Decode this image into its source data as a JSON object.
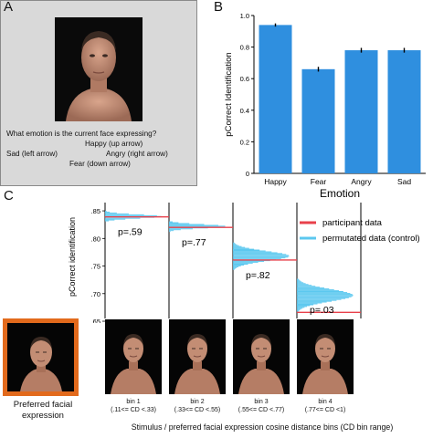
{
  "panel_labels": {
    "a": "A",
    "b": "B",
    "c": "C"
  },
  "panelA": {
    "question": "What emotion is the current face expressing?",
    "happy": "Happy (up arrow)",
    "sad": "Sad (left arrow)",
    "angry": "Angry (right arrow)",
    "fear": "Fear (down arrow)"
  },
  "colors": {
    "bar": "#2f8fdf",
    "hist": "#5cc8ef",
    "participant_line": "#e8414b",
    "preferred_border": "#e26a1c"
  },
  "chart_data": [
    {
      "type": "bar",
      "categories": [
        "Happy",
        "Fear",
        "Angry",
        "Sad"
      ],
      "values": [
        0.94,
        0.66,
        0.78,
        0.78
      ],
      "errors": [
        0.01,
        0.015,
        0.015,
        0.015
      ],
      "xlabel": "Emotion",
      "ylabel": "pCorrect Identification",
      "ylim": [
        0,
        1.0
      ],
      "yticks": [
        "0",
        "0.2",
        "0.4",
        "0.6",
        "0.8",
        "1.0"
      ]
    },
    {
      "type": "histogram",
      "ylabel": "pCorrect identification",
      "ylim": [
        0.655,
        0.865
      ],
      "yticks": [
        ".85",
        ".80",
        ".75",
        ".70",
        ".65"
      ],
      "ytick_values": [
        0.85,
        0.8,
        0.75,
        0.7,
        0.65
      ],
      "bins": [
        {
          "p_label": "p=.59",
          "participant": 0.839,
          "perm_mean": 0.84,
          "perm_sd": 0.0035,
          "label_line1": "bin 1",
          "label_line2": "(.11<= CD <.33)"
        },
        {
          "p_label": "p=.77",
          "participant": 0.82,
          "perm_mean": 0.822,
          "perm_sd": 0.0035,
          "label_line1": "bin 2",
          "label_line2": "(.33<= CD <.55)"
        },
        {
          "p_label": "p=.82",
          "participant": 0.761,
          "perm_mean": 0.768,
          "perm_sd": 0.009,
          "label_line1": "bin 3",
          "label_line2": "(.55<= CD <.77)"
        },
        {
          "p_label": "p=.03",
          "participant": 0.666,
          "perm_mean": 0.697,
          "perm_sd": 0.011,
          "label_line1": "bin 4",
          "label_line2": "(.77<= CD <1)"
        }
      ],
      "legend": [
        "participant data",
        "permutated data (control)"
      ],
      "xlabel": "Stimulus / preferred facial expression cosine distance bins (CD bin range)"
    }
  ],
  "preferred_label": {
    "line1": "Preferred facial",
    "line2": "expression"
  }
}
